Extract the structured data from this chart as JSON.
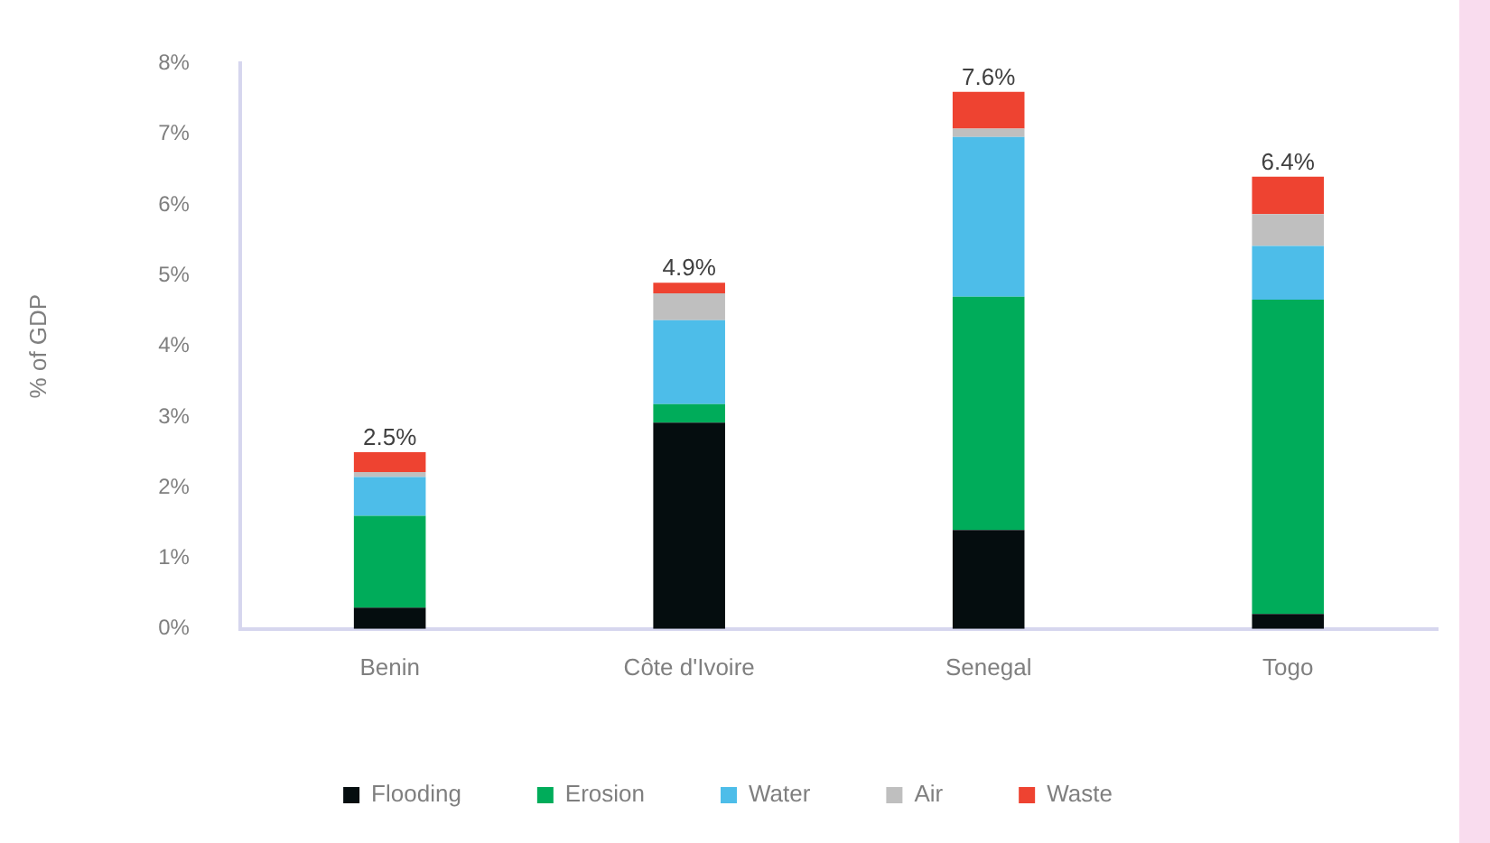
{
  "chart_data": {
    "type": "bar",
    "stacked": true,
    "ylabel": "% of GDP",
    "categories": [
      "Benin",
      "Côte d'Ivoire",
      "Senegal",
      "Togo"
    ],
    "series": [
      {
        "name": "Flooding",
        "color": "#050d0f",
        "values": [
          0.3,
          2.92,
          1.4,
          0.21
        ]
      },
      {
        "name": "Erosion",
        "color": "#00ac5a",
        "values": [
          1.3,
          0.26,
          3.3,
          4.45
        ]
      },
      {
        "name": "Water",
        "color": "#4dbde9",
        "values": [
          0.55,
          1.19,
          2.26,
          0.76
        ]
      },
      {
        "name": "Air",
        "color": "#bfbfbf",
        "values": [
          0.07,
          0.38,
          0.12,
          0.45
        ]
      },
      {
        "name": "Waste",
        "color": "#ee4331",
        "values": [
          0.28,
          0.15,
          0.52,
          0.53
        ]
      }
    ],
    "totals": [
      "2.5%",
      "4.9%",
      "7.6%",
      "6.4%"
    ],
    "ylim": [
      0,
      8
    ],
    "yticks": [
      {
        "value": 0,
        "label": "0%"
      },
      {
        "value": 1,
        "label": "1%"
      },
      {
        "value": 2,
        "label": "2%"
      },
      {
        "value": 3,
        "label": "3%"
      },
      {
        "value": 4,
        "label": "4%"
      },
      {
        "value": 5,
        "label": "5%"
      },
      {
        "value": 6,
        "label": "6%"
      },
      {
        "value": 7,
        "label": "7%"
      },
      {
        "value": 8,
        "label": "8%"
      }
    ],
    "grid": false,
    "legend": "bottom"
  }
}
